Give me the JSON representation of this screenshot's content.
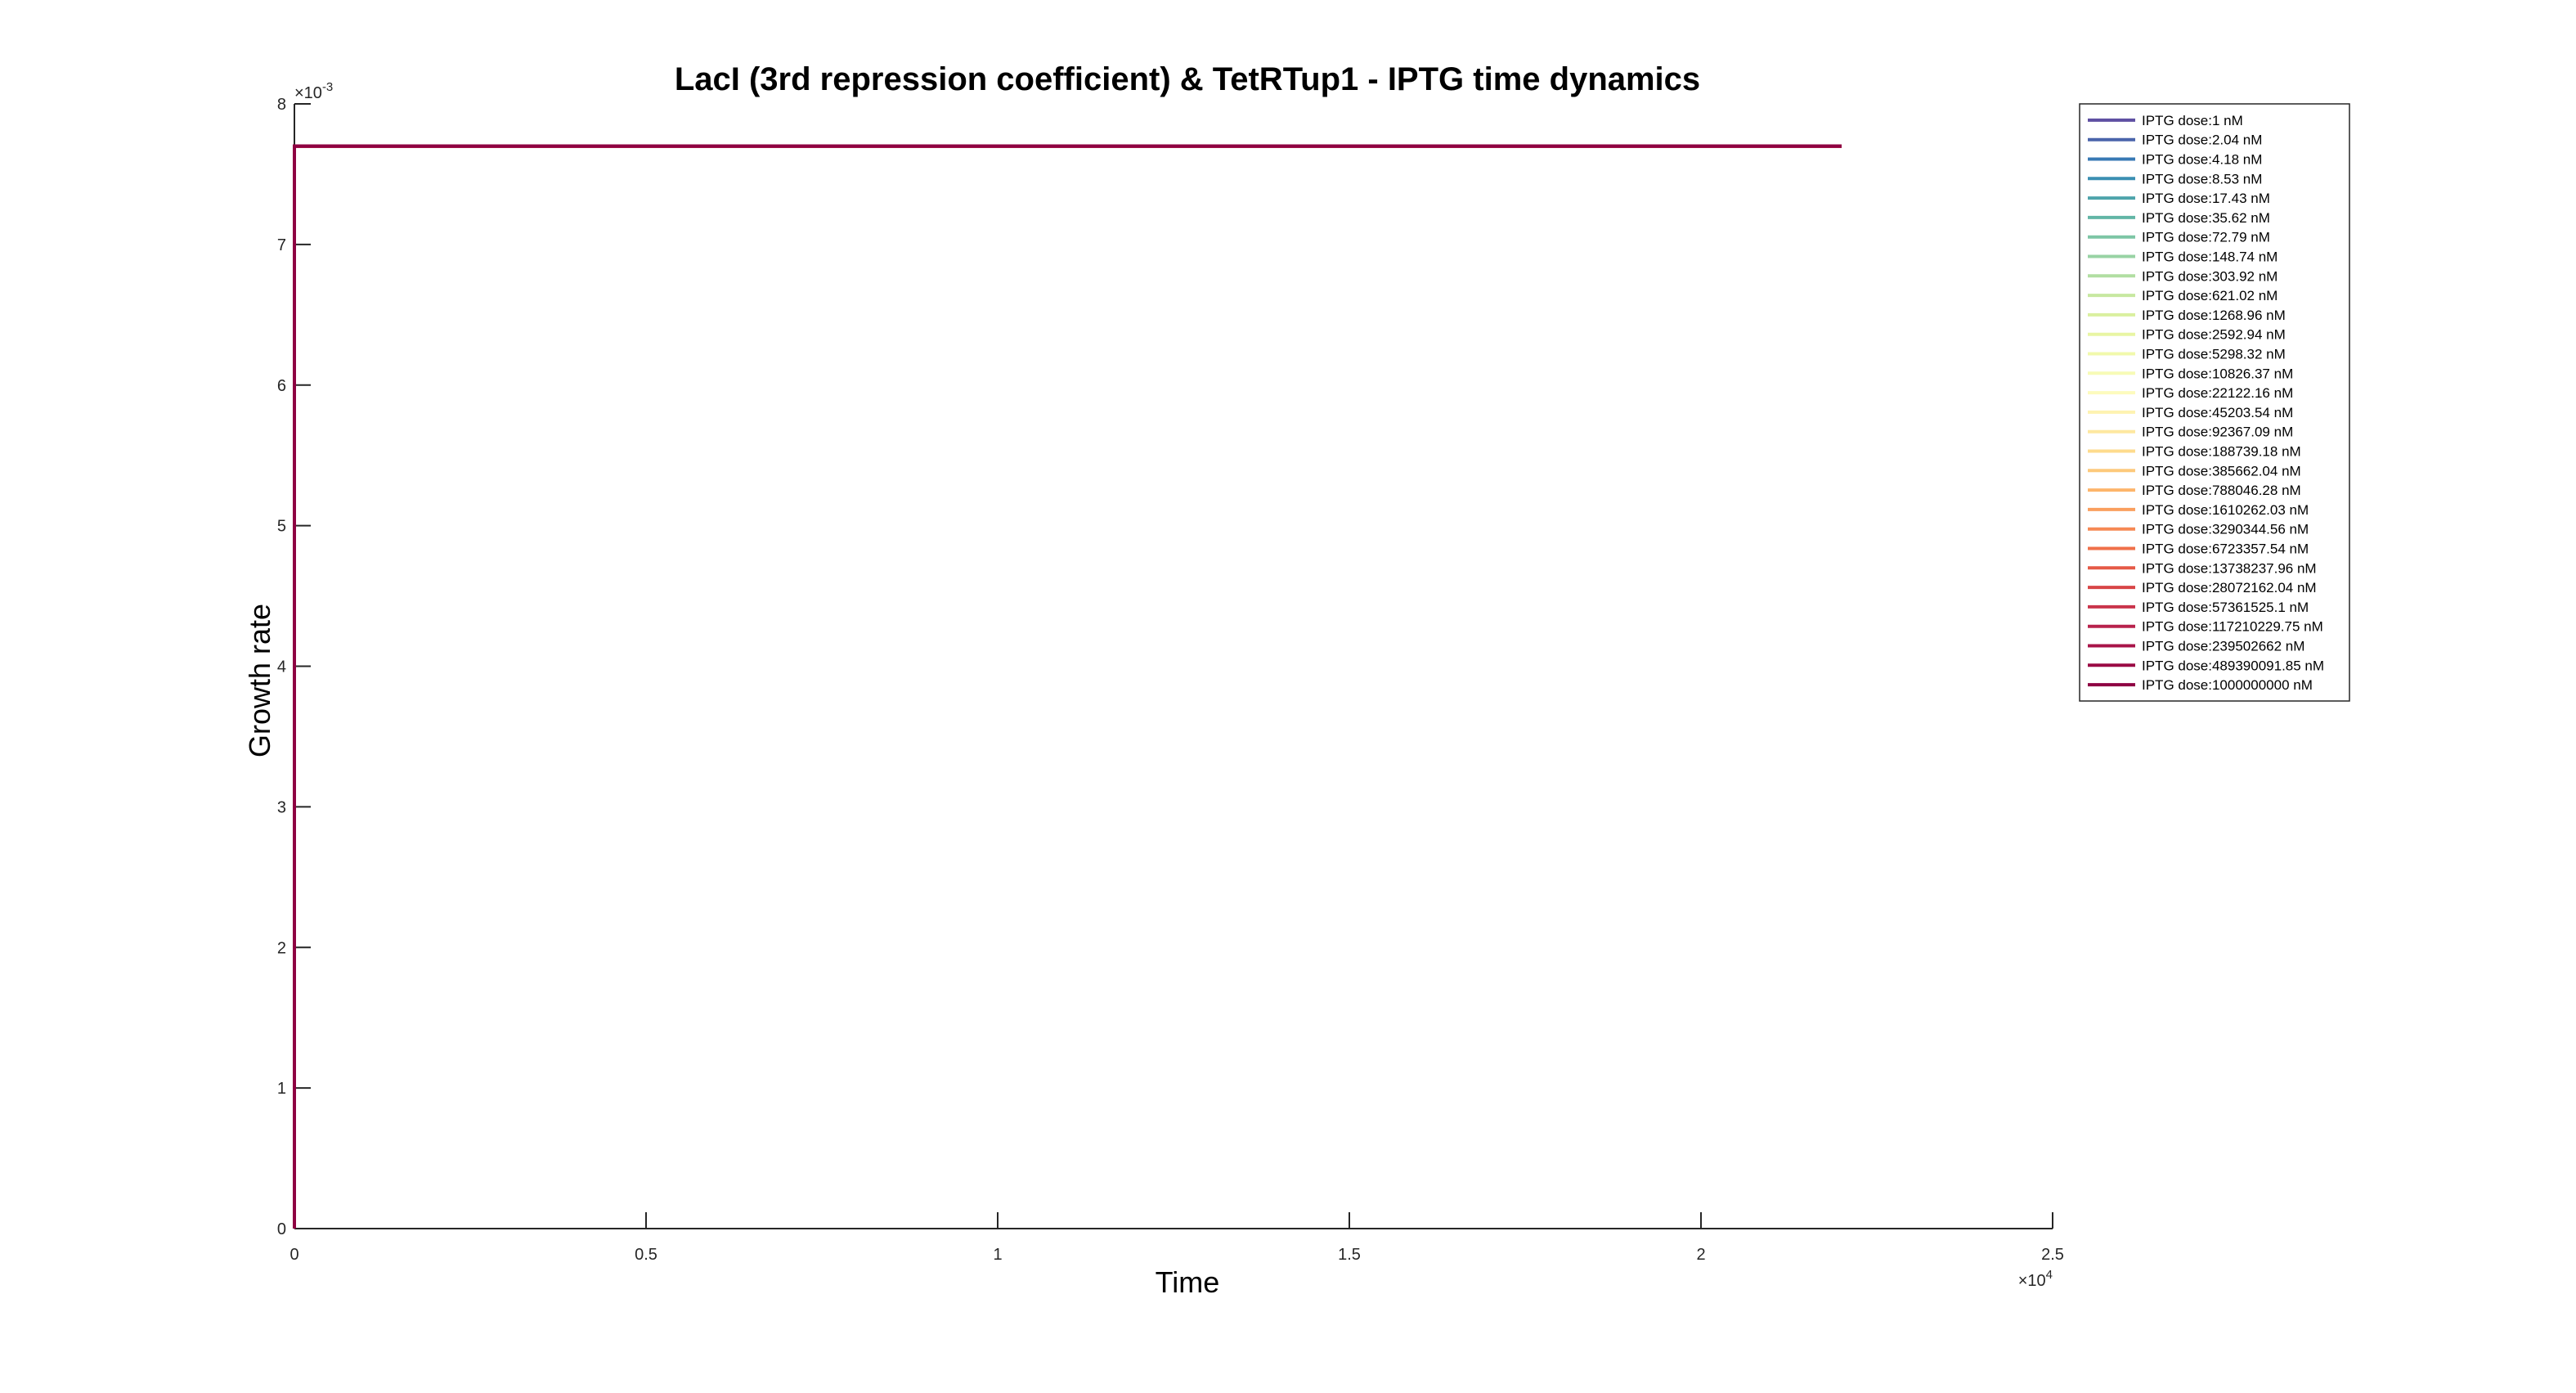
{
  "chart_data": {
    "type": "line",
    "title": "LacI (3rd repression coefficient) & TetRTup1 - IPTG time dynamics",
    "xlabel": "Time",
    "ylabel": "Growth rate",
    "xlim": [
      0,
      2.5
    ],
    "x_exponent_label": "×10",
    "x_exponent": "4",
    "ylim": [
      0,
      8
    ],
    "y_exponent_label": "×10",
    "y_exponent": "-3",
    "x_ticks": [
      "0",
      "0.5",
      "1",
      "1.5",
      "2",
      "2.5"
    ],
    "x_tick_values": [
      0,
      0.5,
      1,
      1.5,
      2,
      2.5
    ],
    "y_ticks": [
      "0",
      "1",
      "2",
      "3",
      "4",
      "5",
      "6",
      "7",
      "8"
    ],
    "y_tick_values": [
      0,
      1,
      2,
      3,
      4,
      5,
      6,
      7,
      8
    ],
    "grid": false,
    "legend_position": "top-right outside",
    "line_x": [
      0,
      0,
      2.2
    ],
    "line_y": [
      0,
      7.7,
      7.7
    ],
    "series": [
      {
        "name": "IPTG dose:1 nM",
        "color": "#5e4fa2"
      },
      {
        "name": "IPTG dose:2.04 nM",
        "color": "#4a64ab"
      },
      {
        "name": "IPTG dose:4.18 nM",
        "color": "#3879b4"
      },
      {
        "name": "IPTG dose:8.53 nM",
        "color": "#3b8fb2"
      },
      {
        "name": "IPTG dose:17.43 nM",
        "color": "#4ea4ab"
      },
      {
        "name": "IPTG dose:35.62 nM",
        "color": "#62b6a6"
      },
      {
        "name": "IPTG dose:72.79 nM",
        "color": "#7dc6a5"
      },
      {
        "name": "IPTG dose:148.74 nM",
        "color": "#98d3a4"
      },
      {
        "name": "IPTG dose:303.92 nM",
        "color": "#b1dea2"
      },
      {
        "name": "IPTG dose:621.02 nM",
        "color": "#c7e8a0"
      },
      {
        "name": "IPTG dose:1268.96 nM",
        "color": "#daf09f"
      },
      {
        "name": "IPTG dose:2592.94 nM",
        "color": "#e8f5a3"
      },
      {
        "name": "IPTG dose:5298.32 nM",
        "color": "#f1f9ac"
      },
      {
        "name": "IPTG dose:10826.37 nM",
        "color": "#f7fbb6"
      },
      {
        "name": "IPTG dose:22122.16 nM",
        "color": "#fdfbbd"
      },
      {
        "name": "IPTG dose:45203.54 nM",
        "color": "#fef3b1"
      },
      {
        "name": "IPTG dose:92367.09 nM",
        "color": "#fee8a0"
      },
      {
        "name": "IPTG dose:188739.18 nM",
        "color": "#fedb8d"
      },
      {
        "name": "IPTG dose:385662.04 nM",
        "color": "#fdc97b"
      },
      {
        "name": "IPTG dose:788046.28 nM",
        "color": "#fdb56b"
      },
      {
        "name": "IPTG dose:1610262.03 nM",
        "color": "#fa9f5e"
      },
      {
        "name": "IPTG dose:3290344.56 nM",
        "color": "#f68854"
      },
      {
        "name": "IPTG dose:6723357.54 nM",
        "color": "#f0704a"
      },
      {
        "name": "IPTG dose:13738237.96 nM",
        "color": "#e55a47"
      },
      {
        "name": "IPTG dose:28072162.04 nM",
        "color": "#d84647"
      },
      {
        "name": "IPTG dose:57361525.1 nM",
        "color": "#c9344b"
      },
      {
        "name": "IPTG dose:117210229.75 nM",
        "color": "#b8224c"
      },
      {
        "name": "IPTG dose:239502662 nM",
        "color": "#a81449"
      },
      {
        "name": "IPTG dose:489390091.85 nM",
        "color": "#9a0a44"
      },
      {
        "name": "IPTG dose:1000000000 nM",
        "color": "#8e0142"
      }
    ]
  }
}
